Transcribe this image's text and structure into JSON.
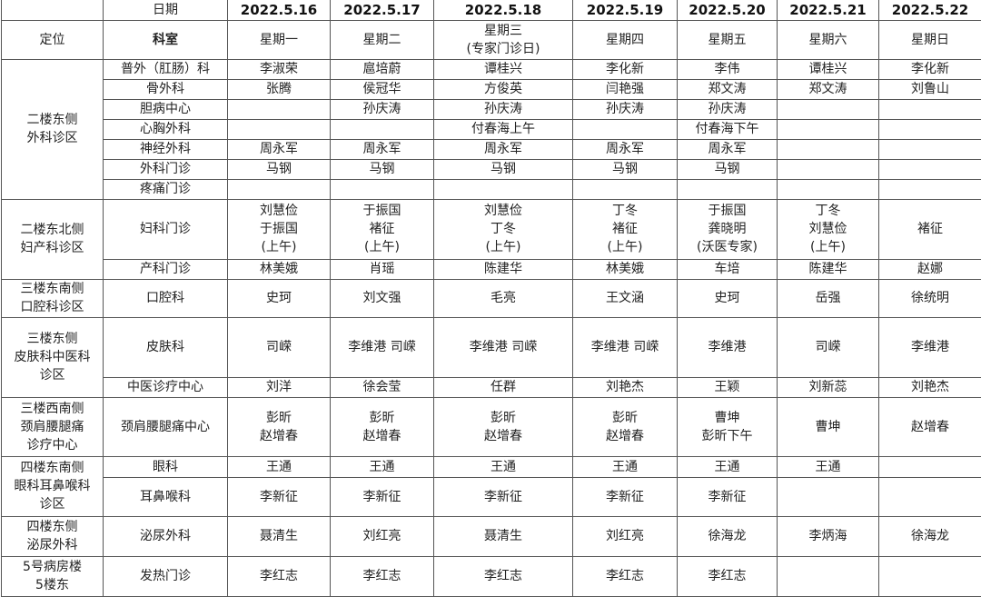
{
  "header": {
    "date_label": "日期",
    "location_label": "定位",
    "dept_label": "科室",
    "dates": [
      "2022.5.16",
      "2022.5.17",
      "2022.5.18",
      "2022.5.19",
      "2022.5.20",
      "2022.5.21",
      "2022.5.22"
    ],
    "weekdays": [
      "星期一",
      "星期二",
      "星期三\n(专家门诊日)",
      "星期四",
      "星期五",
      "星期六",
      "星期日"
    ]
  },
  "groups": [
    {
      "area": "二楼东侧\n外科诊区",
      "rows": [
        {
          "dept": "普外（肛肠）科",
          "doctors": [
            "李淑荣",
            "扈培蔚",
            "谭桂兴",
            "李化新",
            "李伟",
            "谭桂兴",
            "李化新"
          ]
        },
        {
          "dept": "骨外科",
          "doctors": [
            "张腾",
            "侯冠华",
            "方俊英",
            "闫艳强",
            "郑文涛",
            "郑文涛",
            "刘鲁山"
          ]
        },
        {
          "dept": "胆病中心",
          "doctors": [
            "",
            "孙庆涛",
            "孙庆涛",
            "孙庆涛",
            "孙庆涛",
            "",
            ""
          ]
        },
        {
          "dept": "心胸外科",
          "doctors": [
            "",
            "",
            "付春海上午",
            "",
            "付春海下午",
            "",
            ""
          ]
        },
        {
          "dept": "神经外科",
          "doctors": [
            "周永军",
            "周永军",
            "周永军",
            "周永军",
            "周永军",
            "",
            ""
          ]
        },
        {
          "dept": "外科门诊",
          "doctors": [
            "马钢",
            "马钢",
            "马钢",
            "马钢",
            "马钢",
            "",
            ""
          ]
        },
        {
          "dept": "疼痛门诊",
          "doctors": [
            "",
            "",
            "",
            "",
            "",
            "",
            ""
          ]
        }
      ]
    },
    {
      "area": "二楼东北侧\n妇产科诊区",
      "rows": [
        {
          "dept": "妇科门诊",
          "doctors": [
            "刘慧俭\n于振国\n(上午)",
            "于振国\n褚征\n(上午)",
            "刘慧俭\n丁冬\n(上午)",
            "丁冬\n褚征\n(上午)",
            "于振国\n龚晓明\n(沃医专家)",
            "丁冬\n刘慧俭\n(上午)",
            "褚征"
          ]
        },
        {
          "dept": "产科门诊",
          "doctors": [
            "林美娥",
            "肖瑶",
            "陈建华",
            "林美娥",
            "车培",
            "陈建华",
            "赵娜"
          ]
        }
      ]
    },
    {
      "area": "三楼东南侧\n口腔科诊区",
      "rows": [
        {
          "dept": "口腔科",
          "doctors": [
            "史珂",
            "刘文强",
            "毛亮",
            "王文涵",
            "史珂",
            "岳强",
            "徐统明"
          ]
        }
      ]
    },
    {
      "area": "三楼东侧\n皮肤科中医科\n诊区",
      "rows": [
        {
          "dept": "皮肤科",
          "doctors": [
            "司嵘",
            "李维港 司嵘",
            "李维港 司嵘",
            "李维港 司嵘",
            "李维港",
            "司嵘",
            "李维港"
          ]
        },
        {
          "dept": "中医诊疗中心",
          "doctors": [
            "刘洋",
            "徐会莹",
            "任群",
            "刘艳杰",
            "王颖",
            "刘新蕊",
            "刘艳杰"
          ]
        }
      ]
    },
    {
      "area": "三楼西南侧\n颈肩腰腿痛\n诊疗中心",
      "rows": [
        {
          "dept": "颈肩腰腿痛中心",
          "doctors": [
            "彭昕\n赵增春",
            "彭昕\n赵增春",
            "彭昕\n赵增春",
            "彭昕\n赵增春",
            "曹坤\n彭昕下午",
            "曹坤",
            "赵增春"
          ]
        }
      ]
    },
    {
      "area": "四楼东南侧\n眼科耳鼻喉科\n诊区",
      "rows": [
        {
          "dept": "眼科",
          "doctors": [
            "王通",
            "王通",
            "王通",
            "王通",
            "王通",
            "王通",
            ""
          ]
        },
        {
          "dept": "耳鼻喉科",
          "doctors": [
            "李新征",
            "李新征",
            "李新征",
            "李新征",
            "李新征",
            "",
            ""
          ]
        }
      ]
    },
    {
      "area": "四楼东侧\n泌尿外科",
      "rows": [
        {
          "dept": "泌尿外科",
          "doctors": [
            "聂清生",
            "刘红亮",
            "聂清生",
            "刘红亮",
            "徐海龙",
            "李炳海",
            "徐海龙"
          ]
        }
      ]
    },
    {
      "area": "5号病房楼\n5楼东",
      "rows": [
        {
          "dept": "发热门诊",
          "doctors": [
            "李红志",
            "李红志",
            "李红志",
            "李红志",
            "李红志",
            "",
            ""
          ]
        }
      ]
    }
  ]
}
